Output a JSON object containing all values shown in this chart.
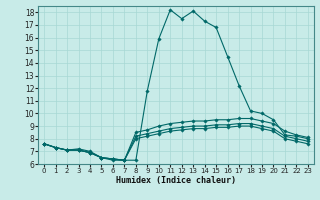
{
  "xlabel": "Humidex (Indice chaleur)",
  "background_color": "#c8ebe8",
  "grid_color": "#a8d8d4",
  "line_color": "#006868",
  "xlim": [
    -0.5,
    23.5
  ],
  "ylim": [
    6,
    18.5
  ],
  "xticks": [
    0,
    1,
    2,
    3,
    4,
    5,
    6,
    7,
    8,
    9,
    10,
    11,
    12,
    13,
    14,
    15,
    16,
    17,
    18,
    19,
    20,
    21,
    22,
    23
  ],
  "yticks": [
    6,
    7,
    8,
    9,
    10,
    11,
    12,
    13,
    14,
    15,
    16,
    17,
    18
  ],
  "series": [
    {
      "x": [
        0,
        1,
        2,
        3,
        4,
        5,
        6,
        7,
        8,
        9,
        10,
        11,
        12,
        13,
        14,
        15,
        16,
        17,
        18,
        19,
        20,
        21,
        22,
        23
      ],
      "y": [
        7.6,
        7.3,
        7.1,
        7.2,
        7.0,
        6.5,
        6.3,
        6.3,
        6.3,
        11.8,
        15.9,
        18.2,
        17.5,
        18.1,
        17.3,
        16.8,
        14.5,
        12.2,
        10.2,
        10.0,
        9.5,
        8.3,
        8.2,
        8.0
      ]
    },
    {
      "x": [
        0,
        1,
        2,
        3,
        4,
        5,
        6,
        7,
        8,
        9,
        10,
        11,
        12,
        13,
        14,
        15,
        16,
        17,
        18,
        19,
        20,
        21,
        22,
        23
      ],
      "y": [
        7.6,
        7.3,
        7.1,
        7.1,
        6.9,
        6.5,
        6.4,
        6.3,
        8.5,
        8.7,
        9.0,
        9.2,
        9.3,
        9.4,
        9.4,
        9.5,
        9.5,
        9.6,
        9.6,
        9.4,
        9.2,
        8.6,
        8.3,
        8.1
      ]
    },
    {
      "x": [
        0,
        1,
        2,
        3,
        4,
        5,
        6,
        7,
        8,
        9,
        10,
        11,
        12,
        13,
        14,
        15,
        16,
        17,
        18,
        19,
        20,
        21,
        22,
        23
      ],
      "y": [
        7.6,
        7.3,
        7.1,
        7.1,
        6.9,
        6.5,
        6.4,
        6.3,
        8.2,
        8.4,
        8.6,
        8.8,
        8.9,
        9.0,
        9.0,
        9.1,
        9.1,
        9.2,
        9.2,
        9.0,
        8.8,
        8.2,
        8.0,
        7.8
      ]
    },
    {
      "x": [
        0,
        1,
        2,
        3,
        4,
        5,
        6,
        7,
        8,
        9,
        10,
        11,
        12,
        13,
        14,
        15,
        16,
        17,
        18,
        19,
        20,
        21,
        22,
        23
      ],
      "y": [
        7.6,
        7.3,
        7.1,
        7.1,
        6.9,
        6.5,
        6.4,
        6.3,
        8.0,
        8.2,
        8.4,
        8.6,
        8.7,
        8.8,
        8.8,
        8.9,
        8.9,
        9.0,
        9.0,
        8.8,
        8.6,
        8.0,
        7.8,
        7.6
      ]
    }
  ]
}
